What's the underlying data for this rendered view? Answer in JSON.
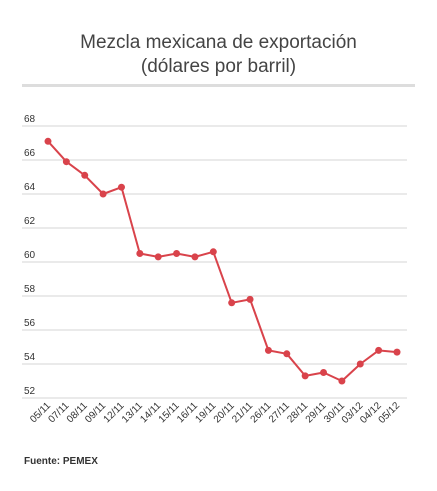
{
  "title_line1": "Mezcla mexicana de exportación",
  "title_line2": "(dólares por barril)",
  "source": "Fuente: PEMEX",
  "colors": {
    "series": "#d9434b",
    "grid": "#d6d6d6",
    "tick_text": "#333333"
  },
  "chart_data": {
    "type": "line",
    "title": "Mezcla mexicana de exportación (dólares por barril)",
    "xlabel": "",
    "ylabel": "",
    "ylim": [
      52,
      68
    ],
    "yticks": [
      52,
      54,
      56,
      58,
      60,
      62,
      64,
      66,
      68
    ],
    "grid": true,
    "legend": "none",
    "categories": [
      "05/11",
      "07/11",
      "08/11",
      "09/11",
      "12/11",
      "13/11",
      "14/11",
      "15/11",
      "16/11",
      "19/11",
      "20/11",
      "21/11",
      "26/11",
      "27/11",
      "28/11",
      "29/11",
      "30/11",
      "03/12",
      "04/12",
      "05/12"
    ],
    "series": [
      {
        "values": [
          67.1,
          65.9,
          65.1,
          64.0,
          64.4,
          60.5,
          60.3,
          60.5,
          60.3,
          60.6,
          57.6,
          57.8,
          54.8,
          54.6,
          53.3,
          53.5,
          53.0,
          54.0,
          54.8,
          54.7
        ]
      }
    ]
  }
}
